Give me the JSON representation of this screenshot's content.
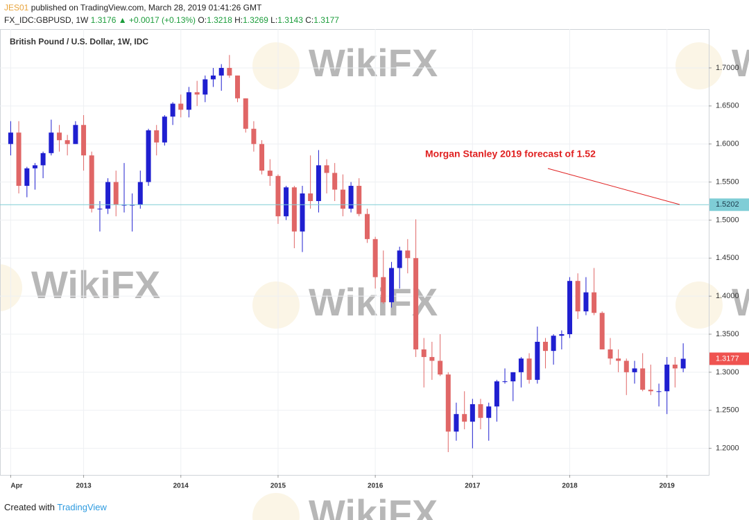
{
  "chart_data": {
    "type": "candlestick",
    "header": {
      "author": "JES01",
      "published": "published on TradingView.com, March 28, 2019 01:41:26 GMT",
      "symbol": "FX_IDC:GBPUSD, 1W",
      "last": "1.3176",
      "arrow": "▲",
      "change": "+0.0017 (+0.13%)",
      "open_label": "O:",
      "open": "1.3218",
      "high_label": "H:",
      "high": "1.3269",
      "low_label": "L:",
      "low": "1.3143",
      "close_label": "C:",
      "close": "1.3177"
    },
    "title": "British Pound / U.S. Dollar, 1W, IDC",
    "annotation": "Morgan Stanley 2019 forecast of 1.52",
    "watermark": "WikiFX",
    "footer": {
      "created": "Created with",
      "brand": "TradingView"
    },
    "up_color": "#1f1fd0",
    "down_color": "#e06666",
    "grid": true,
    "x": [
      2012.25,
      2012.333,
      2012.417,
      2012.5,
      2012.583,
      2012.667,
      2012.75,
      2012.833,
      2012.917,
      2013.0,
      2013.083,
      2013.167,
      2013.25,
      2013.333,
      2013.417,
      2013.5,
      2013.583,
      2013.667,
      2013.75,
      2013.833,
      2013.917,
      2014.0,
      2014.083,
      2014.167,
      2014.25,
      2014.333,
      2014.417,
      2014.5,
      2014.583,
      2014.667,
      2014.75,
      2014.833,
      2014.917,
      2015.0,
      2015.083,
      2015.167,
      2015.25,
      2015.333,
      2015.417,
      2015.5,
      2015.583,
      2015.667,
      2015.75,
      2015.833,
      2015.917,
      2016.0,
      2016.083,
      2016.167,
      2016.25,
      2016.333,
      2016.417,
      2016.5,
      2016.583,
      2016.667,
      2016.75,
      2016.833,
      2016.917,
      2017.0,
      2017.083,
      2017.167,
      2017.25,
      2017.333,
      2017.417,
      2017.5,
      2017.583,
      2017.667,
      2017.75,
      2017.833,
      2017.917,
      2018.0,
      2018.083,
      2018.167,
      2018.25,
      2018.333,
      2018.417,
      2018.5,
      2018.583,
      2018.667,
      2018.75,
      2018.833,
      2018.917,
      2019.0,
      2019.083,
      2019.167
    ],
    "open": [
      1.6,
      1.615,
      1.545,
      1.568,
      1.572,
      1.588,
      1.615,
      1.605,
      1.6,
      1.625,
      1.585,
      1.515,
      1.515,
      1.55,
      1.52,
      1.52,
      1.52,
      1.55,
      1.618,
      1.602,
      1.636,
      1.653,
      1.645,
      1.668,
      1.665,
      1.685,
      1.69,
      1.7,
      1.69,
      1.66,
      1.62,
      1.6,
      1.565,
      1.558,
      1.505,
      1.543,
      1.485,
      1.535,
      1.525,
      1.572,
      1.562,
      1.54,
      1.515,
      1.545,
      1.508,
      1.475,
      1.425,
      1.392,
      1.437,
      1.46,
      1.45,
      1.33,
      1.32,
      1.315,
      1.297,
      1.222,
      1.245,
      1.235,
      1.258,
      1.24,
      1.255,
      1.288,
      1.288,
      1.3,
      1.318,
      1.29,
      1.34,
      1.328,
      1.348,
      1.35,
      1.42,
      1.38,
      1.405,
      1.378,
      1.33,
      1.318,
      1.315,
      1.3,
      1.305,
      1.277,
      1.275,
      1.275,
      1.31,
      1.305
    ],
    "high": [
      1.63,
      1.63,
      1.57,
      1.575,
      1.59,
      1.632,
      1.625,
      1.612,
      1.63,
      1.638,
      1.59,
      1.525,
      1.555,
      1.565,
      1.575,
      1.535,
      1.565,
      1.62,
      1.625,
      1.638,
      1.655,
      1.665,
      1.675,
      1.683,
      1.69,
      1.7,
      1.705,
      1.717,
      1.69,
      1.66,
      1.63,
      1.605,
      1.58,
      1.56,
      1.545,
      1.545,
      1.545,
      1.585,
      1.592,
      1.58,
      1.575,
      1.56,
      1.55,
      1.555,
      1.515,
      1.478,
      1.46,
      1.445,
      1.465,
      1.475,
      1.501,
      1.345,
      1.34,
      1.35,
      1.3,
      1.26,
      1.275,
      1.265,
      1.265,
      1.26,
      1.29,
      1.305,
      1.3,
      1.32,
      1.325,
      1.36,
      1.345,
      1.35,
      1.355,
      1.425,
      1.43,
      1.425,
      1.437,
      1.38,
      1.345,
      1.33,
      1.318,
      1.315,
      1.325,
      1.31,
      1.285,
      1.32,
      1.32,
      1.338
    ],
    "low": [
      1.585,
      1.535,
      1.53,
      1.54,
      1.555,
      1.585,
      1.59,
      1.585,
      1.6,
      1.565,
      1.51,
      1.485,
      1.508,
      1.505,
      1.51,
      1.485,
      1.515,
      1.545,
      1.585,
      1.598,
      1.625,
      1.635,
      1.635,
      1.65,
      1.655,
      1.675,
      1.67,
      1.687,
      1.655,
      1.615,
      1.59,
      1.56,
      1.545,
      1.495,
      1.5,
      1.463,
      1.458,
      1.515,
      1.51,
      1.535,
      1.525,
      1.505,
      1.51,
      1.505,
      1.47,
      1.41,
      1.39,
      1.385,
      1.41,
      1.43,
      1.32,
      1.28,
      1.29,
      1.295,
      1.195,
      1.21,
      1.225,
      1.2,
      1.225,
      1.21,
      1.235,
      1.285,
      1.262,
      1.28,
      1.285,
      1.285,
      1.305,
      1.31,
      1.33,
      1.345,
      1.37,
      1.375,
      1.375,
      1.33,
      1.31,
      1.3,
      1.27,
      1.285,
      1.275,
      1.27,
      1.255,
      1.245,
      1.28,
      1.3
    ],
    "close": [
      1.615,
      1.545,
      1.568,
      1.572,
      1.588,
      1.615,
      1.605,
      1.6,
      1.625,
      1.585,
      1.515,
      1.515,
      1.55,
      1.52,
      1.52,
      1.52,
      1.55,
      1.618,
      1.602,
      1.636,
      1.653,
      1.645,
      1.668,
      1.665,
      1.685,
      1.69,
      1.7,
      1.69,
      1.66,
      1.62,
      1.6,
      1.565,
      1.558,
      1.505,
      1.543,
      1.485,
      1.535,
      1.525,
      1.572,
      1.562,
      1.54,
      1.515,
      1.545,
      1.508,
      1.475,
      1.425,
      1.392,
      1.437,
      1.46,
      1.45,
      1.33,
      1.32,
      1.315,
      1.297,
      1.222,
      1.245,
      1.235,
      1.258,
      1.24,
      1.255,
      1.288,
      1.288,
      1.3,
      1.318,
      1.29,
      1.34,
      1.328,
      1.348,
      1.35,
      1.42,
      1.38,
      1.405,
      1.378,
      1.33,
      1.318,
      1.315,
      1.3,
      1.305,
      1.277,
      1.275,
      1.275,
      1.31,
      1.305,
      1.3177
    ],
    "xlim": [
      2012.14,
      2019.43
    ],
    "xticks": [
      {
        "value": 2012.25,
        "label": "Apr"
      },
      2013,
      2014,
      2015,
      2016,
      2017,
      2018,
      2019
    ],
    "ylim": [
      1.165,
      1.751
    ],
    "yticks": [
      {
        "value": 1.2,
        "label": "1.2000"
      },
      {
        "value": 1.25,
        "label": "1.2500"
      },
      {
        "value": 1.3,
        "label": "1.3000"
      },
      {
        "value": 1.35,
        "label": "1.3500"
      },
      {
        "value": 1.4,
        "label": "1.4000"
      },
      {
        "value": 1.45,
        "label": "1.4500"
      },
      {
        "value": 1.5,
        "label": "1.5000"
      },
      {
        "value": 1.55,
        "label": "1.5500"
      },
      {
        "value": 1.6,
        "label": "1.6000"
      },
      {
        "value": 1.65,
        "label": "1.6500"
      },
      {
        "value": 1.7,
        "label": "1.7000"
      }
    ],
    "hline": {
      "value": 1.5202,
      "color": "#7fcdd6"
    },
    "last_price": 1.3177,
    "last_price_color": "#ef5350"
  }
}
